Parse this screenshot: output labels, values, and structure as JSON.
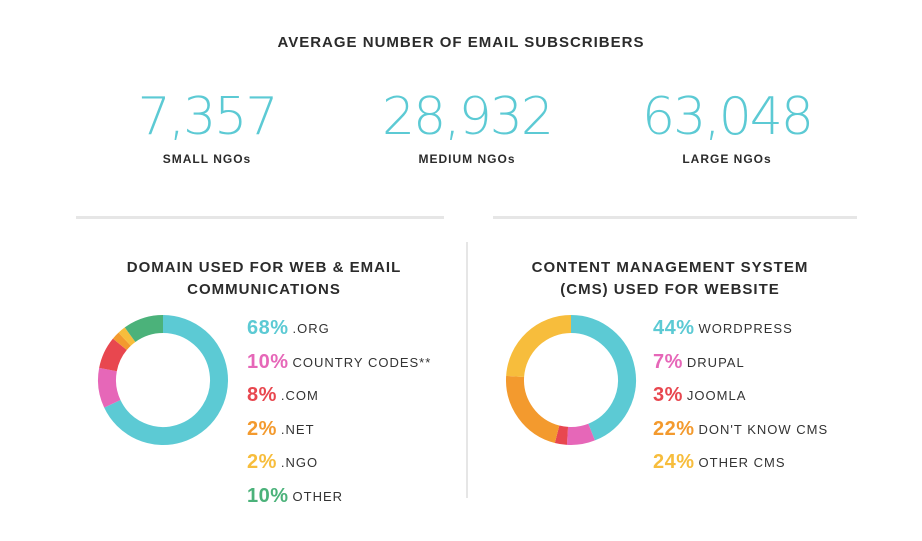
{
  "title": "AVERAGE NUMBER OF EMAIL SUBSCRIBERS",
  "stats": [
    {
      "value": "7,357",
      "label": "SMALL NGOs"
    },
    {
      "value": "28,932",
      "label": "MEDIUM NGOs"
    },
    {
      "value": "63,048",
      "label": "LARGE NGOs"
    }
  ],
  "chart_data": [
    {
      "type": "pie",
      "title_line1": "DOMAIN USED FOR WEB & EMAIL",
      "title_line2": "COMMUNICATIONS",
      "categories": [
        ".ORG",
        "COUNTRY CODES**",
        ".COM",
        ".NET",
        ".NGO",
        "OTHER"
      ],
      "values": [
        68,
        10,
        8,
        2,
        2,
        10
      ],
      "labels": [
        "68%",
        "10%",
        "8%",
        "2%",
        "2%",
        "10%"
      ],
      "colors": [
        "#5ccad4",
        "#e667b8",
        "#e8474f",
        "#f39a2e",
        "#f7bd3c",
        "#4bb27a"
      ]
    },
    {
      "type": "pie",
      "title_line1": "CONTENT MANAGEMENT SYSTEM",
      "title_line2": "(CMS) USED FOR WEBSITE",
      "categories": [
        "WORDPRESS",
        "DRUPAL",
        "JOOMLA",
        "DON'T KNOW CMS",
        "OTHER CMS"
      ],
      "values": [
        44,
        7,
        3,
        22,
        24
      ],
      "labels": [
        "44%",
        "7%",
        "3%",
        "22%",
        "24%"
      ],
      "colors": [
        "#5ccad4",
        "#e667b8",
        "#e8474f",
        "#f39a2e",
        "#f7bd3c"
      ]
    }
  ]
}
